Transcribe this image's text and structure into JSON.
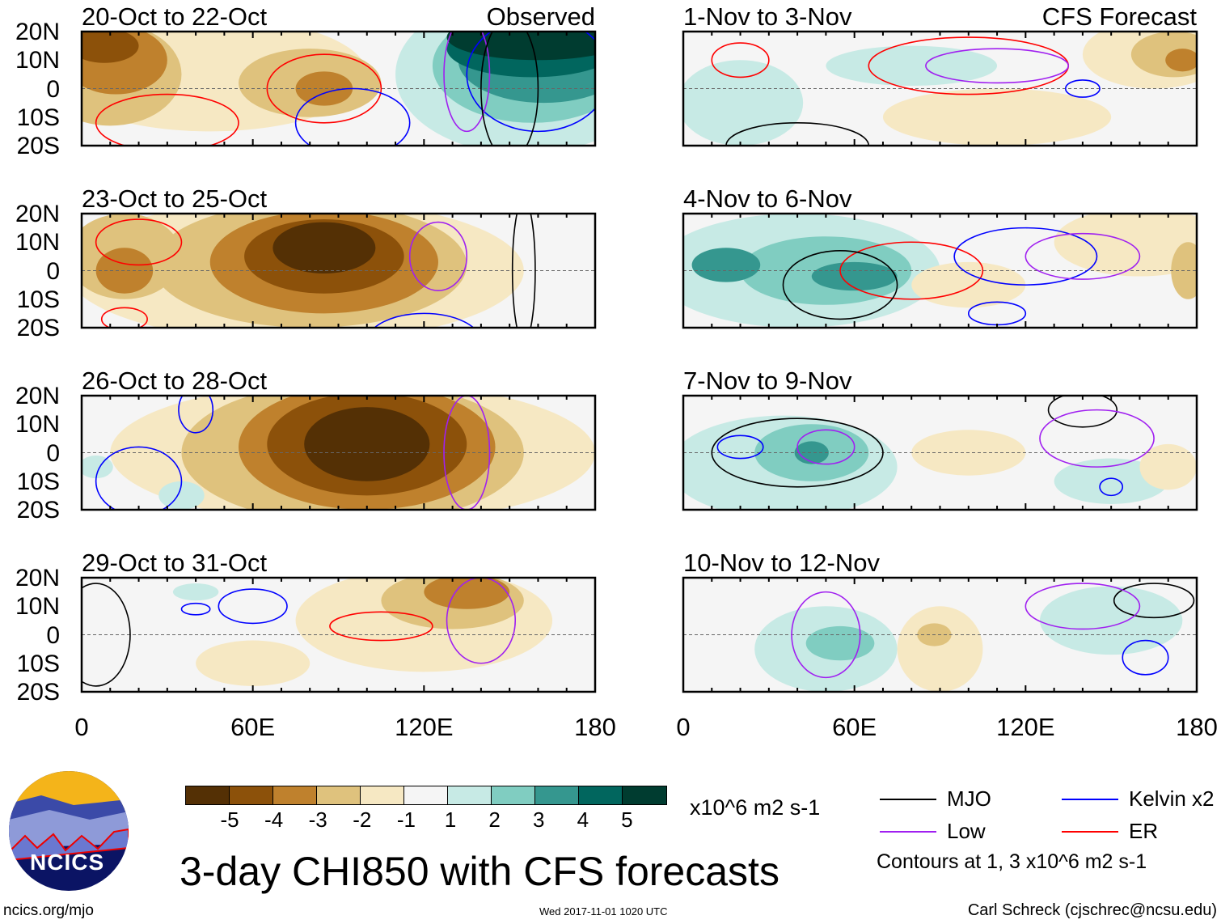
{
  "title": "3-day CHI850 with CFS forecasts",
  "units": "x10^6 m2 s-1",
  "labels": {
    "observed": "Observed",
    "forecast": "CFS Forecast"
  },
  "lat_ticks": [
    "20N",
    "10N",
    "0",
    "10S",
    "20S"
  ],
  "lon_ticks": [
    "0",
    "60E",
    "120E",
    "180"
  ],
  "colorbar": {
    "levels": [
      "-5",
      "-4",
      "-3",
      "-2",
      "-1",
      "1",
      "2",
      "3",
      "4",
      "5"
    ],
    "colors": [
      "#543005",
      "#8c510a",
      "#bf812d",
      "#dfc27d",
      "#f6e8c3",
      "#f5f5f5",
      "#c7eae5",
      "#80cdc1",
      "#35978f",
      "#01665e",
      "#003c30"
    ]
  },
  "legend": {
    "items": [
      {
        "label": "MJO",
        "color": "#000000"
      },
      {
        "label": "Kelvin x2",
        "color": "#0000ff"
      },
      {
        "label": "Low",
        "color": "#a020f0"
      },
      {
        "label": "ER",
        "color": "#ff0000"
      }
    ],
    "note": "Contours at 1, 3 x10^6 m2 s-1"
  },
  "logo": {
    "text": "NCICS"
  },
  "footer": {
    "url": "ncics.org/mjo",
    "timestamp": "Wed 2017-11-01 1020 UTC",
    "credit": "Carl Schreck (cjschrec@ncsu.edu)"
  },
  "panels": [
    {
      "title": "20-Oct to 22-Oct",
      "side": "observed",
      "blobs": [
        [
          45,
          5,
          55,
          20,
          -1
        ],
        [
          10,
          5,
          25,
          18,
          -2
        ],
        [
          80,
          2,
          25,
          12,
          -2
        ],
        [
          12,
          10,
          18,
          12,
          -3
        ],
        [
          85,
          0,
          10,
          6,
          -3
        ],
        [
          8,
          15,
          12,
          6,
          -4
        ],
        [
          155,
          5,
          45,
          28,
          1
        ],
        [
          158,
          8,
          35,
          20,
          2
        ],
        [
          162,
          10,
          30,
          15,
          3
        ],
        [
          158,
          14,
          30,
          10,
          4
        ],
        [
          160,
          18,
          32,
          8,
          5
        ]
      ],
      "contours": [
        [
          30,
          -12,
          25,
          10,
          "ER"
        ],
        [
          85,
          0,
          20,
          12,
          "ER"
        ],
        [
          95,
          -12,
          20,
          12,
          "Kelvin"
        ],
        [
          160,
          5,
          25,
          20,
          "Kelvin"
        ],
        [
          135,
          5,
          8,
          20,
          "Low"
        ],
        [
          150,
          0,
          10,
          25,
          "MJO"
        ]
      ]
    },
    {
      "title": "1-Nov to 3-Nov",
      "side": "forecast",
      "blobs": [
        [
          20,
          -5,
          22,
          15,
          1
        ],
        [
          80,
          8,
          30,
          7,
          1
        ],
        [
          110,
          -10,
          40,
          10,
          -1
        ],
        [
          165,
          12,
          25,
          12,
          -1
        ],
        [
          172,
          12,
          15,
          8,
          -2
        ],
        [
          175,
          10,
          6,
          4,
          -3
        ]
      ],
      "contours": [
        [
          100,
          8,
          35,
          10,
          "ER"
        ],
        [
          20,
          10,
          10,
          6,
          "ER"
        ],
        [
          110,
          8,
          25,
          6,
          "Low"
        ],
        [
          140,
          0,
          6,
          3,
          "Kelvin"
        ],
        [
          40,
          -20,
          25,
          8,
          "MJO"
        ]
      ]
    },
    {
      "title": "23-Oct to 25-Oct",
      "blobs": [
        [
          75,
          0,
          80,
          25,
          -1
        ],
        [
          80,
          2,
          55,
          22,
          -2
        ],
        [
          85,
          3,
          40,
          18,
          -3
        ],
        [
          85,
          5,
          28,
          13,
          -4
        ],
        [
          85,
          8,
          18,
          9,
          -5
        ],
        [
          15,
          5,
          20,
          15,
          -2
        ],
        [
          15,
          0,
          10,
          8,
          -3
        ]
      ],
      "contours": [
        [
          15,
          -17,
          8,
          4,
          "ER"
        ],
        [
          20,
          10,
          15,
          8,
          "ER"
        ],
        [
          125,
          5,
          10,
          12,
          "Low"
        ],
        [
          155,
          0,
          4,
          25,
          "MJO"
        ],
        [
          120,
          -25,
          20,
          10,
          "Kelvin"
        ]
      ]
    },
    {
      "title": "4-Nov to 6-Nov",
      "blobs": [
        [
          40,
          0,
          50,
          20,
          1
        ],
        [
          50,
          0,
          30,
          12,
          2
        ],
        [
          15,
          2,
          12,
          6,
          3
        ],
        [
          60,
          -2,
          15,
          5,
          3
        ],
        [
          160,
          10,
          30,
          12,
          -1
        ],
        [
          100,
          -5,
          20,
          8,
          -1
        ],
        [
          177,
          0,
          6,
          10,
          -2
        ]
      ],
      "contours": [
        [
          80,
          0,
          25,
          10,
          "ER"
        ],
        [
          55,
          -5,
          20,
          12,
          "MJO"
        ],
        [
          120,
          5,
          25,
          10,
          "Kelvin"
        ],
        [
          110,
          -15,
          10,
          4,
          "Kelvin"
        ],
        [
          140,
          5,
          20,
          8,
          "Low"
        ]
      ]
    },
    {
      "title": "26-Oct to 28-Oct",
      "blobs": [
        [
          95,
          0,
          85,
          25,
          -1
        ],
        [
          95,
          0,
          60,
          25,
          -2
        ],
        [
          100,
          2,
          45,
          22,
          -3
        ],
        [
          100,
          3,
          35,
          18,
          -4
        ],
        [
          100,
          3,
          22,
          13,
          -5
        ],
        [
          35,
          -15,
          8,
          5,
          1
        ],
        [
          5,
          -5,
          6,
          4,
          1
        ]
      ],
      "contours": [
        [
          135,
          0,
          8,
          20,
          "Low"
        ],
        [
          20,
          -10,
          15,
          12,
          "Kelvin"
        ],
        [
          40,
          15,
          6,
          8,
          "Kelvin"
        ]
      ]
    },
    {
      "title": "7-Nov to 9-Nov",
      "blobs": [
        [
          35,
          -5,
          40,
          18,
          1
        ],
        [
          45,
          0,
          20,
          10,
          2
        ],
        [
          45,
          0,
          6,
          4,
          3
        ],
        [
          100,
          0,
          20,
          8,
          -1
        ],
        [
          150,
          -10,
          20,
          8,
          1
        ],
        [
          170,
          -5,
          10,
          8,
          -1
        ]
      ],
      "contours": [
        [
          40,
          0,
          30,
          12,
          "MJO"
        ],
        [
          50,
          2,
          10,
          6,
          "Low"
        ],
        [
          20,
          2,
          8,
          4,
          "Kelvin"
        ],
        [
          140,
          15,
          12,
          6,
          "MJO"
        ],
        [
          145,
          5,
          20,
          10,
          "Low"
        ],
        [
          150,
          -12,
          4,
          3,
          "Kelvin"
        ]
      ]
    },
    {
      "title": "29-Oct to 31-Oct",
      "blobs": [
        [
          120,
          5,
          45,
          18,
          -1
        ],
        [
          130,
          12,
          25,
          10,
          -2
        ],
        [
          135,
          15,
          15,
          6,
          -3
        ],
        [
          60,
          -10,
          20,
          8,
          -1
        ],
        [
          40,
          15,
          8,
          3,
          1
        ]
      ],
      "contours": [
        [
          105,
          3,
          18,
          5,
          "ER"
        ],
        [
          60,
          10,
          12,
          6,
          "Kelvin"
        ],
        [
          40,
          9,
          5,
          2,
          "Kelvin"
        ],
        [
          5,
          0,
          12,
          18,
          "MJO"
        ],
        [
          140,
          5,
          12,
          15,
          "Low"
        ]
      ]
    },
    {
      "title": "10-Nov to 12-Nov",
      "blobs": [
        [
          50,
          -5,
          25,
          15,
          1
        ],
        [
          55,
          -3,
          12,
          6,
          2
        ],
        [
          90,
          -5,
          15,
          15,
          -1
        ],
        [
          88,
          0,
          6,
          4,
          -2
        ],
        [
          150,
          5,
          25,
          12,
          1
        ]
      ],
      "contours": [
        [
          50,
          0,
          12,
          15,
          "Low"
        ],
        [
          165,
          12,
          14,
          6,
          "MJO"
        ],
        [
          162,
          -8,
          8,
          6,
          "Kelvin"
        ],
        [
          140,
          10,
          20,
          8,
          "Low"
        ]
      ]
    }
  ]
}
